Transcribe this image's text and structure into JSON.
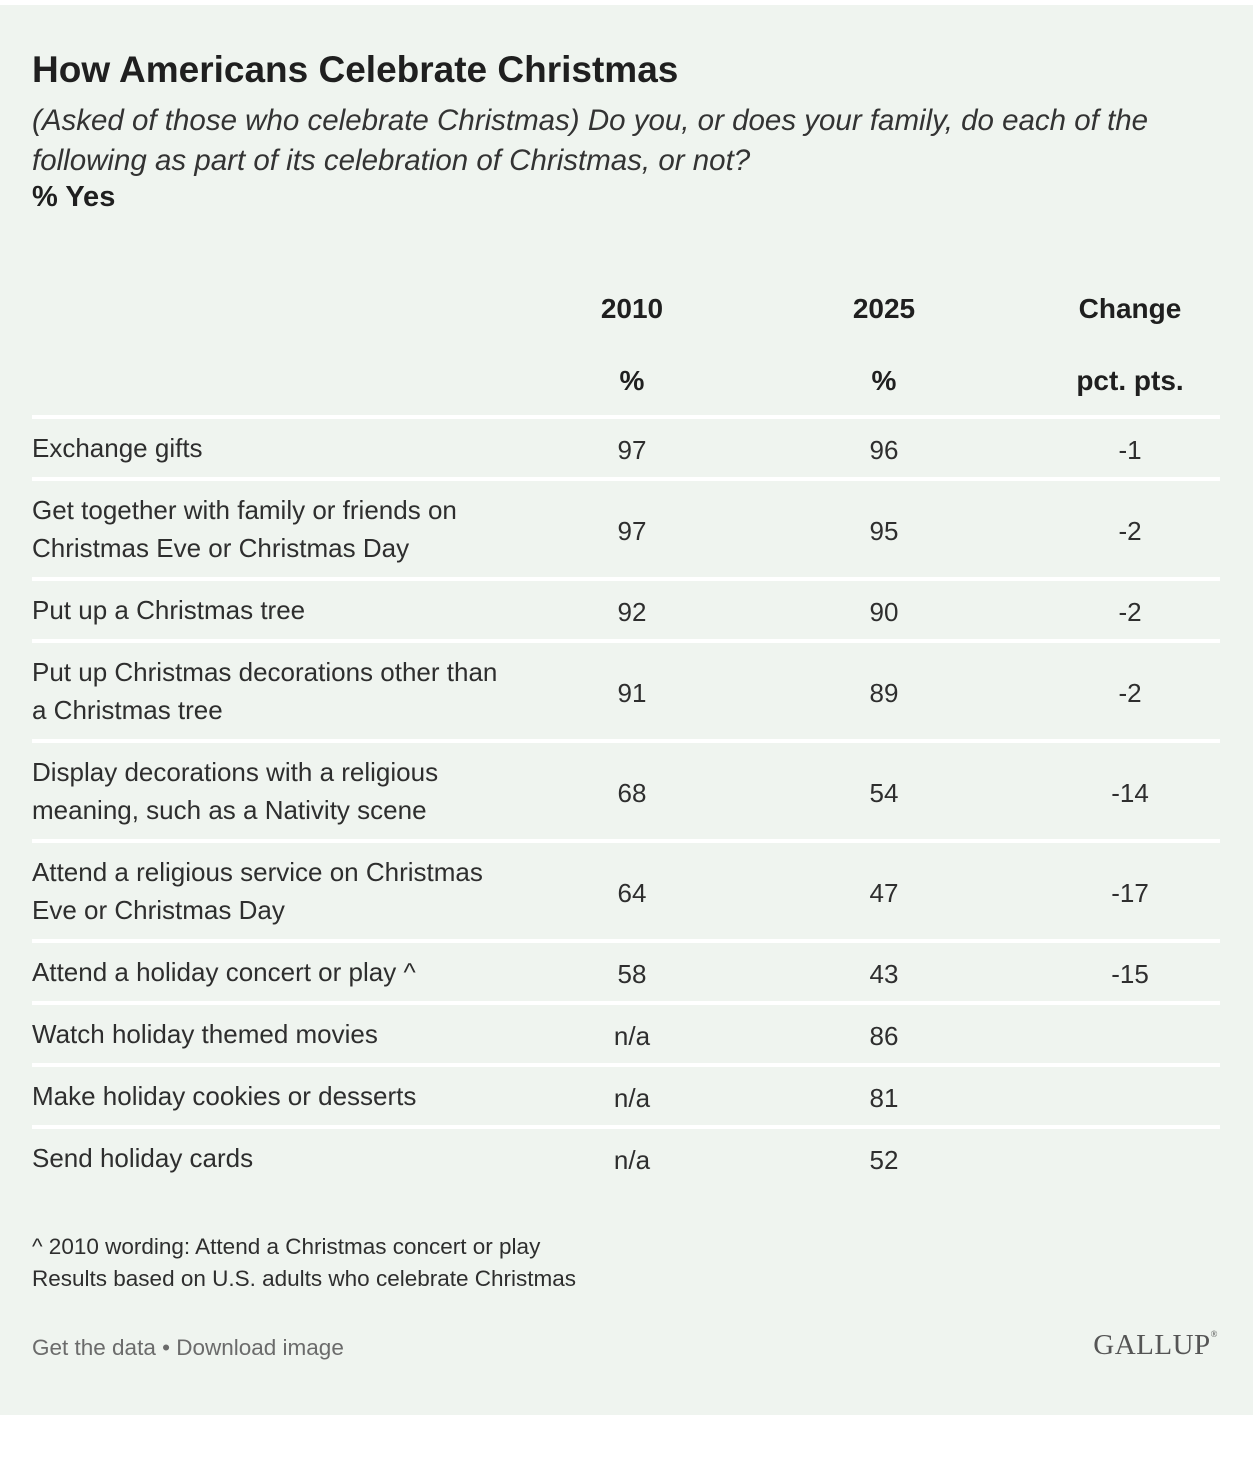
{
  "title": "How Americans Celebrate Christmas",
  "subtitle": "(Asked of those who celebrate Christmas) Do you, or does your family, do each of the following as part of its celebration of Christmas, or not?",
  "measure": "% Yes",
  "chart_data": {
    "type": "table",
    "title": "How Americans Celebrate Christmas",
    "columns": [
      {
        "key": "y2010",
        "header": "2010",
        "unit": "%"
      },
      {
        "key": "y2025",
        "header": "2025",
        "unit": "%"
      },
      {
        "key": "change",
        "header": "Change",
        "unit": "pct. pts."
      }
    ],
    "rows": [
      {
        "label": "Exchange gifts",
        "y2010": "97",
        "y2025": "96",
        "change": "-1"
      },
      {
        "label": "Get together with family or friends on Christmas Eve or Christmas Day",
        "y2010": "97",
        "y2025": "95",
        "change": "-2"
      },
      {
        "label": "Put up a Christmas tree",
        "y2010": "92",
        "y2025": "90",
        "change": "-2"
      },
      {
        "label": "Put up Christmas decorations other than a Christmas tree",
        "y2010": "91",
        "y2025": "89",
        "change": "-2"
      },
      {
        "label": "Display decorations with a religious meaning, such as a Nativity scene",
        "y2010": "68",
        "y2025": "54",
        "change": "-14"
      },
      {
        "label": "Attend a religious service on Christmas Eve or Christmas Day",
        "y2010": "64",
        "y2025": "47",
        "change": "-17"
      },
      {
        "label": "Attend a holiday concert or play ^",
        "y2010": "58",
        "y2025": "43",
        "change": "-15"
      },
      {
        "label": "Watch holiday themed movies",
        "y2010": "n/a",
        "y2025": "86",
        "change": ""
      },
      {
        "label": "Make holiday cookies or desserts",
        "y2010": "n/a",
        "y2025": "81",
        "change": ""
      },
      {
        "label": "Send holiday cards",
        "y2010": "n/a",
        "y2025": "52",
        "change": ""
      }
    ]
  },
  "notes": [
    "^ 2010 wording: Attend a Christmas concert or play",
    "Results based on U.S. adults who celebrate Christmas"
  ],
  "footer": {
    "get_data": "Get the data",
    "separator": " • ",
    "download": "Download image",
    "brand": "GALLUP"
  },
  "colors": {
    "background": "#eff4ef",
    "divider": "#ffffff",
    "text": "#2e2e2e"
  }
}
